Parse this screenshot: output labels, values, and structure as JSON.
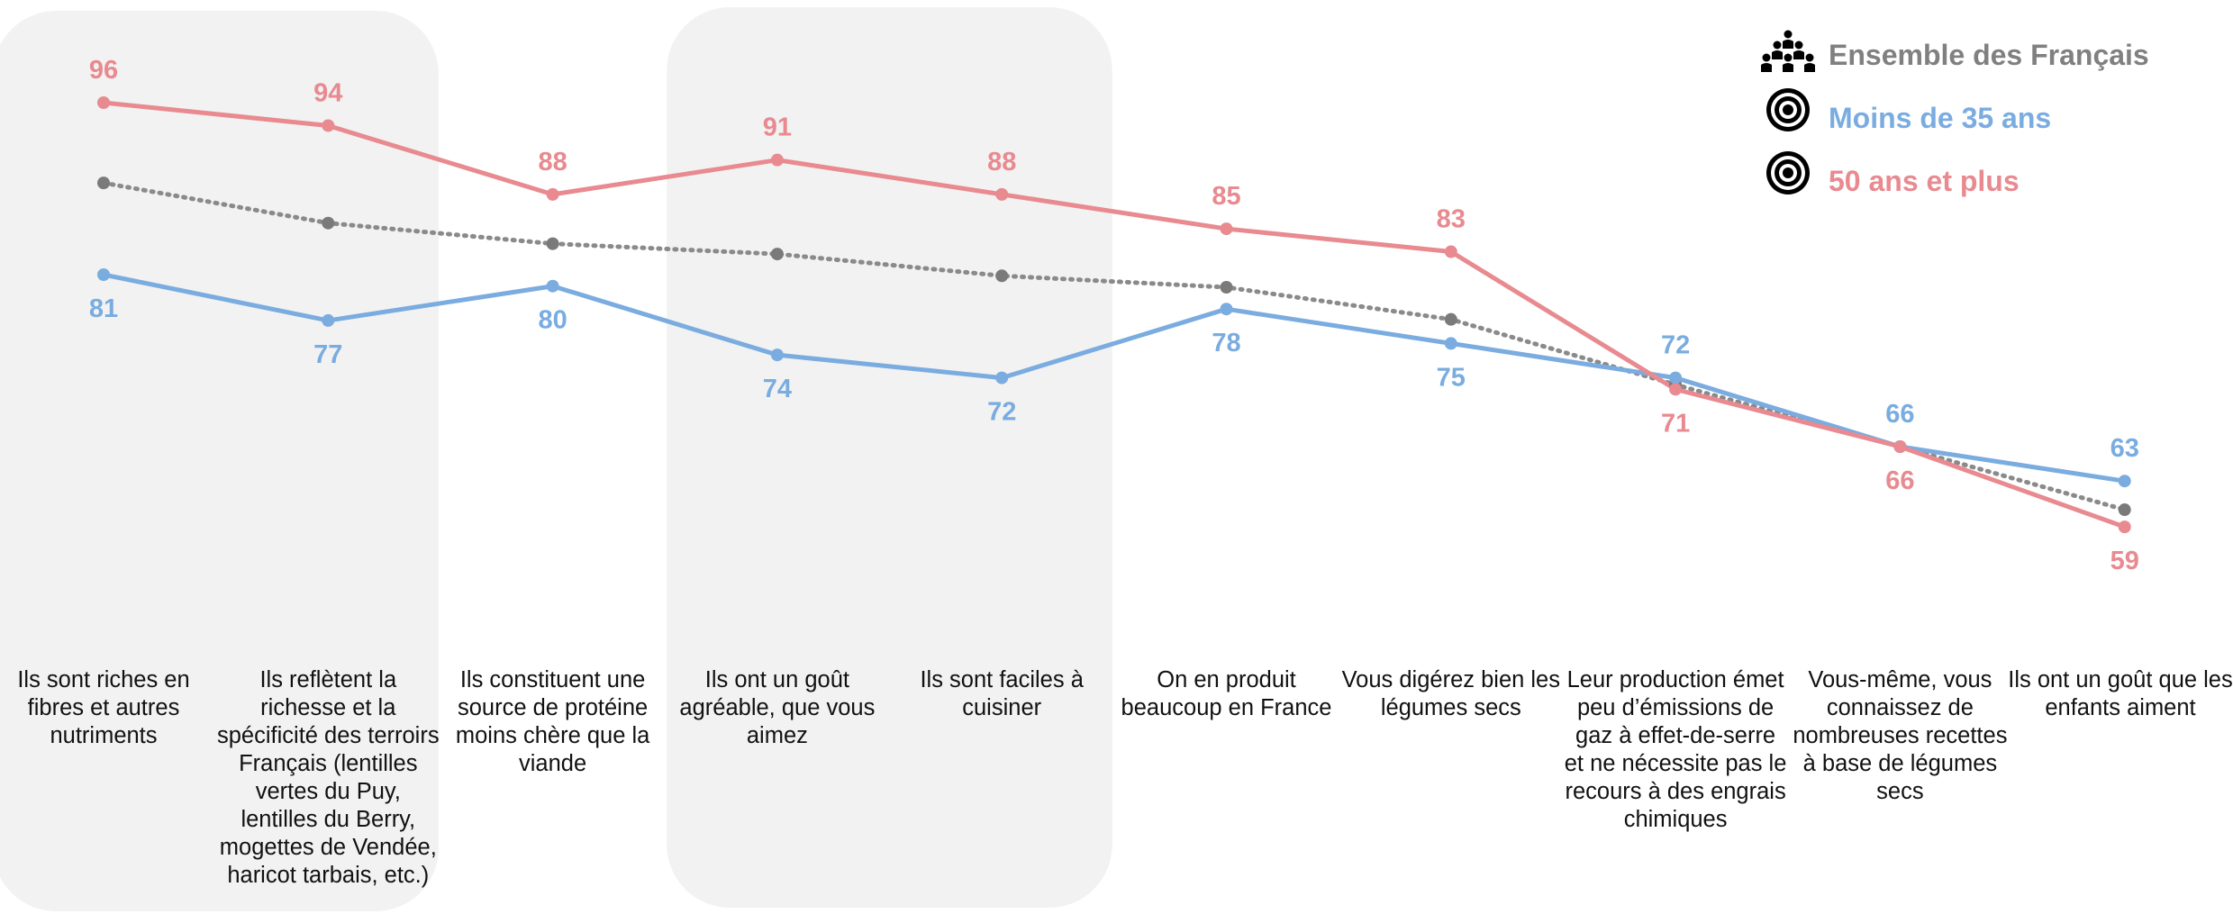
{
  "chart_data": {
    "type": "line",
    "categories": [
      "Ils sont riches en fibres et autres nutriments",
      "Ils reflètent la richesse et la spécificité des terroirs Français (lentilles vertes du Puy, lentilles du Berry, mogettes de Vendée, haricot tarbais, etc.)",
      "Ils constituent une source de protéine moins chère que la viande",
      "Ils ont un goût agréable, que vous aimez",
      "Ils sont faciles à cuisiner",
      "On en produit beaucoup en France",
      "Vous digérez bien les légumes secs",
      "Leur production émet peu d’émissions de gaz à effet-de-serre et ne nécessite pas le recours à des engrais chimiques",
      "Vous-même, vous connaissez de nombreuses recettes à base de légumes secs",
      "Ils ont un goût que les enfants aiment"
    ],
    "series": [
      {
        "name": "Ensemble des Français",
        "values": [
          89,
          85.5,
          83.7,
          82.8,
          80.9,
          79.9,
          77.1,
          71.4,
          66,
          60.5
        ],
        "color": "#808080",
        "style": "dotted",
        "labels": null
      },
      {
        "name": "Moins de 35 ans",
        "values": [
          81,
          77,
          80,
          74,
          72,
          78,
          75,
          72,
          66,
          63
        ],
        "color": "#7AACE0",
        "style": "solid",
        "labels": [
          "81",
          "77",
          "80",
          "74",
          "72",
          "78",
          "75",
          "72",
          "66",
          "63"
        ]
      },
      {
        "name": "50 ans et plus",
        "values": [
          96,
          94,
          88,
          91,
          88,
          85,
          83,
          71,
          66,
          59
        ],
        "color": "#E88A90",
        "style": "solid",
        "labels": [
          "96",
          "94",
          "88",
          "91",
          "88",
          "85",
          "83",
          "71",
          "66",
          "59"
        ]
      }
    ],
    "label_side": {
      "Moins de 35 ans": [
        "below",
        "below",
        "below",
        "below",
        "below",
        "below",
        "below",
        "above",
        "above",
        "above"
      ],
      "50 ans et plus": [
        "above",
        "above",
        "above",
        "above",
        "above",
        "above",
        "above",
        "below",
        "below",
        "below"
      ]
    },
    "highlighted_categories": [
      0,
      1,
      3,
      4
    ],
    "legend_position": "top-right",
    "legend_icons": [
      "people-group-icon",
      "target-icon",
      "target-icon"
    ],
    "legend_label_color": "#808080",
    "grid": false,
    "ylim": [
      50,
      100
    ],
    "title": "",
    "xlabel": "",
    "ylabel": ""
  }
}
